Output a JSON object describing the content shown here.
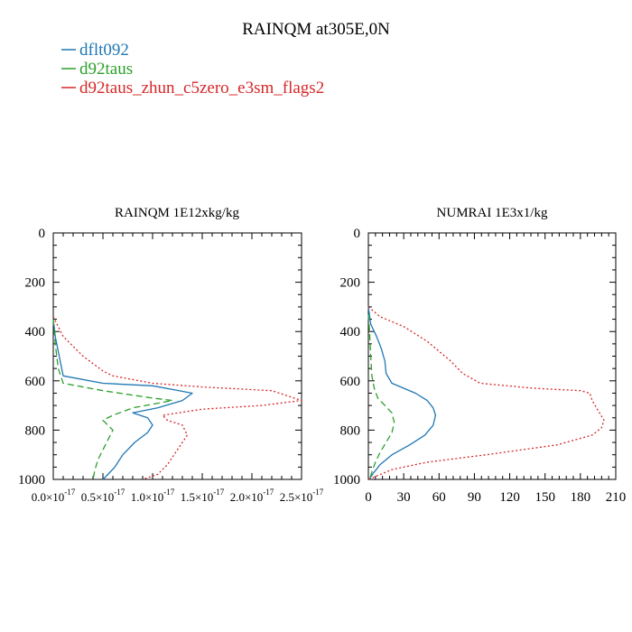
{
  "figure": {
    "title": "RAINQM at305E,0N"
  },
  "legend": [
    {
      "label": "dflt092",
      "color": "#1f77b4",
      "dash": "solid"
    },
    {
      "label": "d92taus",
      "color": "#2ca02c",
      "dash": "dashed"
    },
    {
      "label": "d92taus_zhun_c5zero_e3sm_flags2",
      "color": "#d62728",
      "dash": "dotted"
    }
  ],
  "chart_data": [
    {
      "type": "line",
      "title": "RAINQM  1E12xkg/kg",
      "xlabel": "",
      "ylabel": "",
      "xlim": [
        0,
        2.5e-17
      ],
      "ylim": [
        1000,
        0
      ],
      "x_ticks": [
        {
          "value": 0,
          "mant": "0.0",
          "exp": "-17"
        },
        {
          "value": 5e-18,
          "mant": "0.5",
          "exp": "-17"
        },
        {
          "value": 1e-17,
          "mant": "1.0",
          "exp": "-17"
        },
        {
          "value": 1.5e-17,
          "mant": "1.5",
          "exp": "-17"
        },
        {
          "value": 2e-17,
          "mant": "2.0",
          "exp": "-17"
        },
        {
          "value": 2.5e-17,
          "mant": "2.5",
          "exp": "-17"
        }
      ],
      "tick_times": "×10",
      "y_ticks": [
        "0",
        "200",
        "400",
        "600",
        "800",
        "1000"
      ],
      "y_tick_values": [
        0,
        200,
        400,
        600,
        800,
        1000
      ],
      "series": [
        {
          "name": "dflt092",
          "x": [
            0,
            2e-19,
            1e-18,
            5e-18,
            1e-17,
            1.2e-17,
            1.4e-17,
            1.3e-17,
            1.05e-17,
            8e-18,
            9.5e-18,
            1e-17,
            9.5e-18,
            8.2e-18,
            7e-18,
            6.2e-18,
            5.5e-18,
            5e-18
          ],
          "y": [
            350,
            420,
            580,
            610,
            620,
            635,
            650,
            680,
            710,
            730,
            750,
            780,
            810,
            850,
            900,
            950,
            980,
            1000
          ]
        },
        {
          "name": "d92taus",
          "x": [
            0,
            2e-19,
            5e-19,
            1e-18,
            5e-18,
            1e-17,
            1.2e-17,
            8e-18,
            6e-18,
            5e-18,
            6e-18,
            5.5e-18,
            5e-18,
            4.5e-18,
            4.2e-18,
            4e-18
          ],
          "y": [
            350,
            450,
            550,
            610,
            640,
            670,
            680,
            710,
            740,
            760,
            800,
            840,
            880,
            920,
            960,
            1000
          ]
        },
        {
          "name": "d92taus_zhun_c5zero_e3sm_flags2",
          "x": [
            0,
            1e-18,
            3e-18,
            5e-18,
            6e-18,
            1e-17,
            1.5e-17,
            2.2e-17,
            2.5e-17,
            2.1e-17,
            1.5e-17,
            1.1e-17,
            1.15e-17,
            1.3e-17,
            1.35e-17,
            1.25e-17,
            1.15e-17,
            1.05e-17,
            9e-18
          ],
          "y": [
            340,
            420,
            500,
            560,
            580,
            610,
            625,
            640,
            680,
            700,
            715,
            740,
            760,
            780,
            820,
            880,
            940,
            980,
            1000
          ]
        }
      ]
    },
    {
      "type": "line",
      "title": "NUMRAI  1E3x1/kg",
      "xlabel": "",
      "ylabel": "",
      "xlim": [
        0,
        210
      ],
      "ylim": [
        1000,
        0
      ],
      "x_ticks": [
        {
          "value": 0,
          "label": "0"
        },
        {
          "value": 30,
          "label": "30"
        },
        {
          "value": 60,
          "label": "60"
        },
        {
          "value": 90,
          "label": "90"
        },
        {
          "value": 120,
          "label": "120"
        },
        {
          "value": 150,
          "label": "150"
        },
        {
          "value": 180,
          "label": "180"
        },
        {
          "value": 210,
          "label": "210"
        }
      ],
      "y_ticks": [
        "0",
        "200",
        "400",
        "600",
        "800",
        "1000"
      ],
      "y_tick_values": [
        0,
        200,
        400,
        600,
        800,
        1000
      ],
      "series": [
        {
          "name": "dflt092",
          "x": [
            0,
            2,
            7,
            11,
            14,
            15,
            20,
            30,
            40,
            50,
            55,
            57,
            55,
            48,
            35,
            20,
            10,
            5,
            2,
            1
          ],
          "y": [
            300,
            370,
            420,
            470,
            520,
            570,
            610,
            630,
            650,
            680,
            710,
            740,
            780,
            820,
            860,
            900,
            940,
            970,
            990,
            1000
          ]
        },
        {
          "name": "d92taus",
          "x": [
            0,
            1,
            2,
            3,
            5,
            8,
            14,
            20,
            22,
            20,
            15,
            10,
            6,
            3,
            1
          ],
          "y": [
            330,
            400,
            500,
            580,
            630,
            670,
            700,
            730,
            770,
            810,
            850,
            890,
            930,
            970,
            1000
          ]
        },
        {
          "name": "d92taus_zhun_c5zero_e3sm_flags2",
          "x": [
            0,
            10,
            30,
            50,
            70,
            80,
            95,
            140,
            180,
            188,
            190,
            195,
            200,
            198,
            190,
            160,
            100,
            50,
            20,
            5,
            0
          ],
          "y": [
            300,
            340,
            380,
            440,
            520,
            570,
            610,
            630,
            640,
            650,
            680,
            720,
            760,
            790,
            820,
            860,
            900,
            930,
            960,
            990,
            1000
          ]
        }
      ]
    }
  ]
}
